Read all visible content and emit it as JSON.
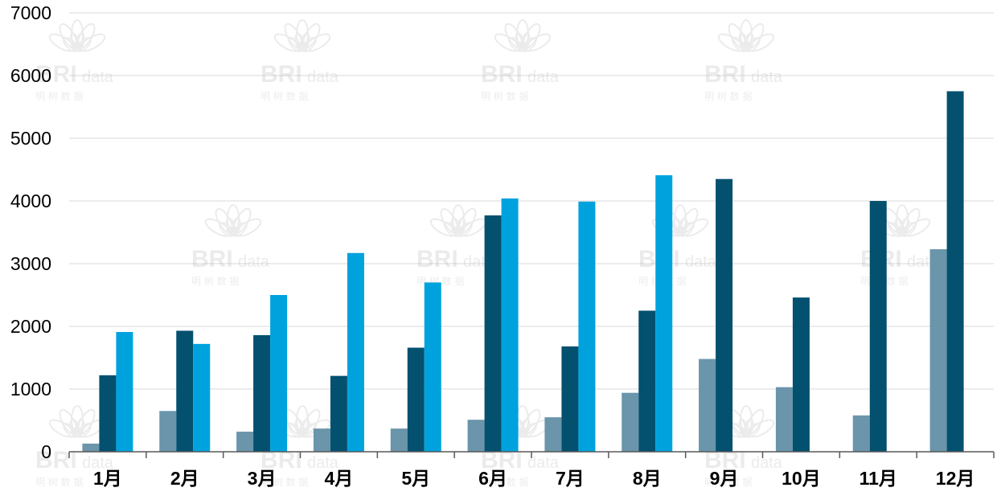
{
  "chart_data": {
    "type": "bar",
    "title": "",
    "xlabel": "",
    "ylabel": "",
    "ylim": [
      0,
      7000
    ],
    "yticks": [
      0,
      1000,
      2000,
      3000,
      4000,
      5000,
      6000,
      7000
    ],
    "grid": true,
    "legend": "none",
    "categories": [
      "1月",
      "2月",
      "3月",
      "4月",
      "5月",
      "6月",
      "7月",
      "8月",
      "9月",
      "10月",
      "11月",
      "12月"
    ],
    "series": [
      {
        "color": "#6a95ab",
        "values": [
          130,
          650,
          320,
          370,
          370,
          510,
          550,
          940,
          1480,
          1030,
          580,
          3230
        ]
      },
      {
        "color": "#03506f",
        "values": [
          1220,
          1930,
          1860,
          1210,
          1660,
          3770,
          1680,
          2250,
          4350,
          2460,
          4000,
          5750
        ]
      },
      {
        "color": "#00a2de",
        "values": [
          1910,
          1720,
          2500,
          3170,
          2700,
          4040,
          3990,
          4410,
          null,
          null,
          null,
          null
        ]
      }
    ]
  },
  "watermark": {
    "brand": "BRI",
    "suffix": "data",
    "subtitle": "明 树 数 据"
  }
}
